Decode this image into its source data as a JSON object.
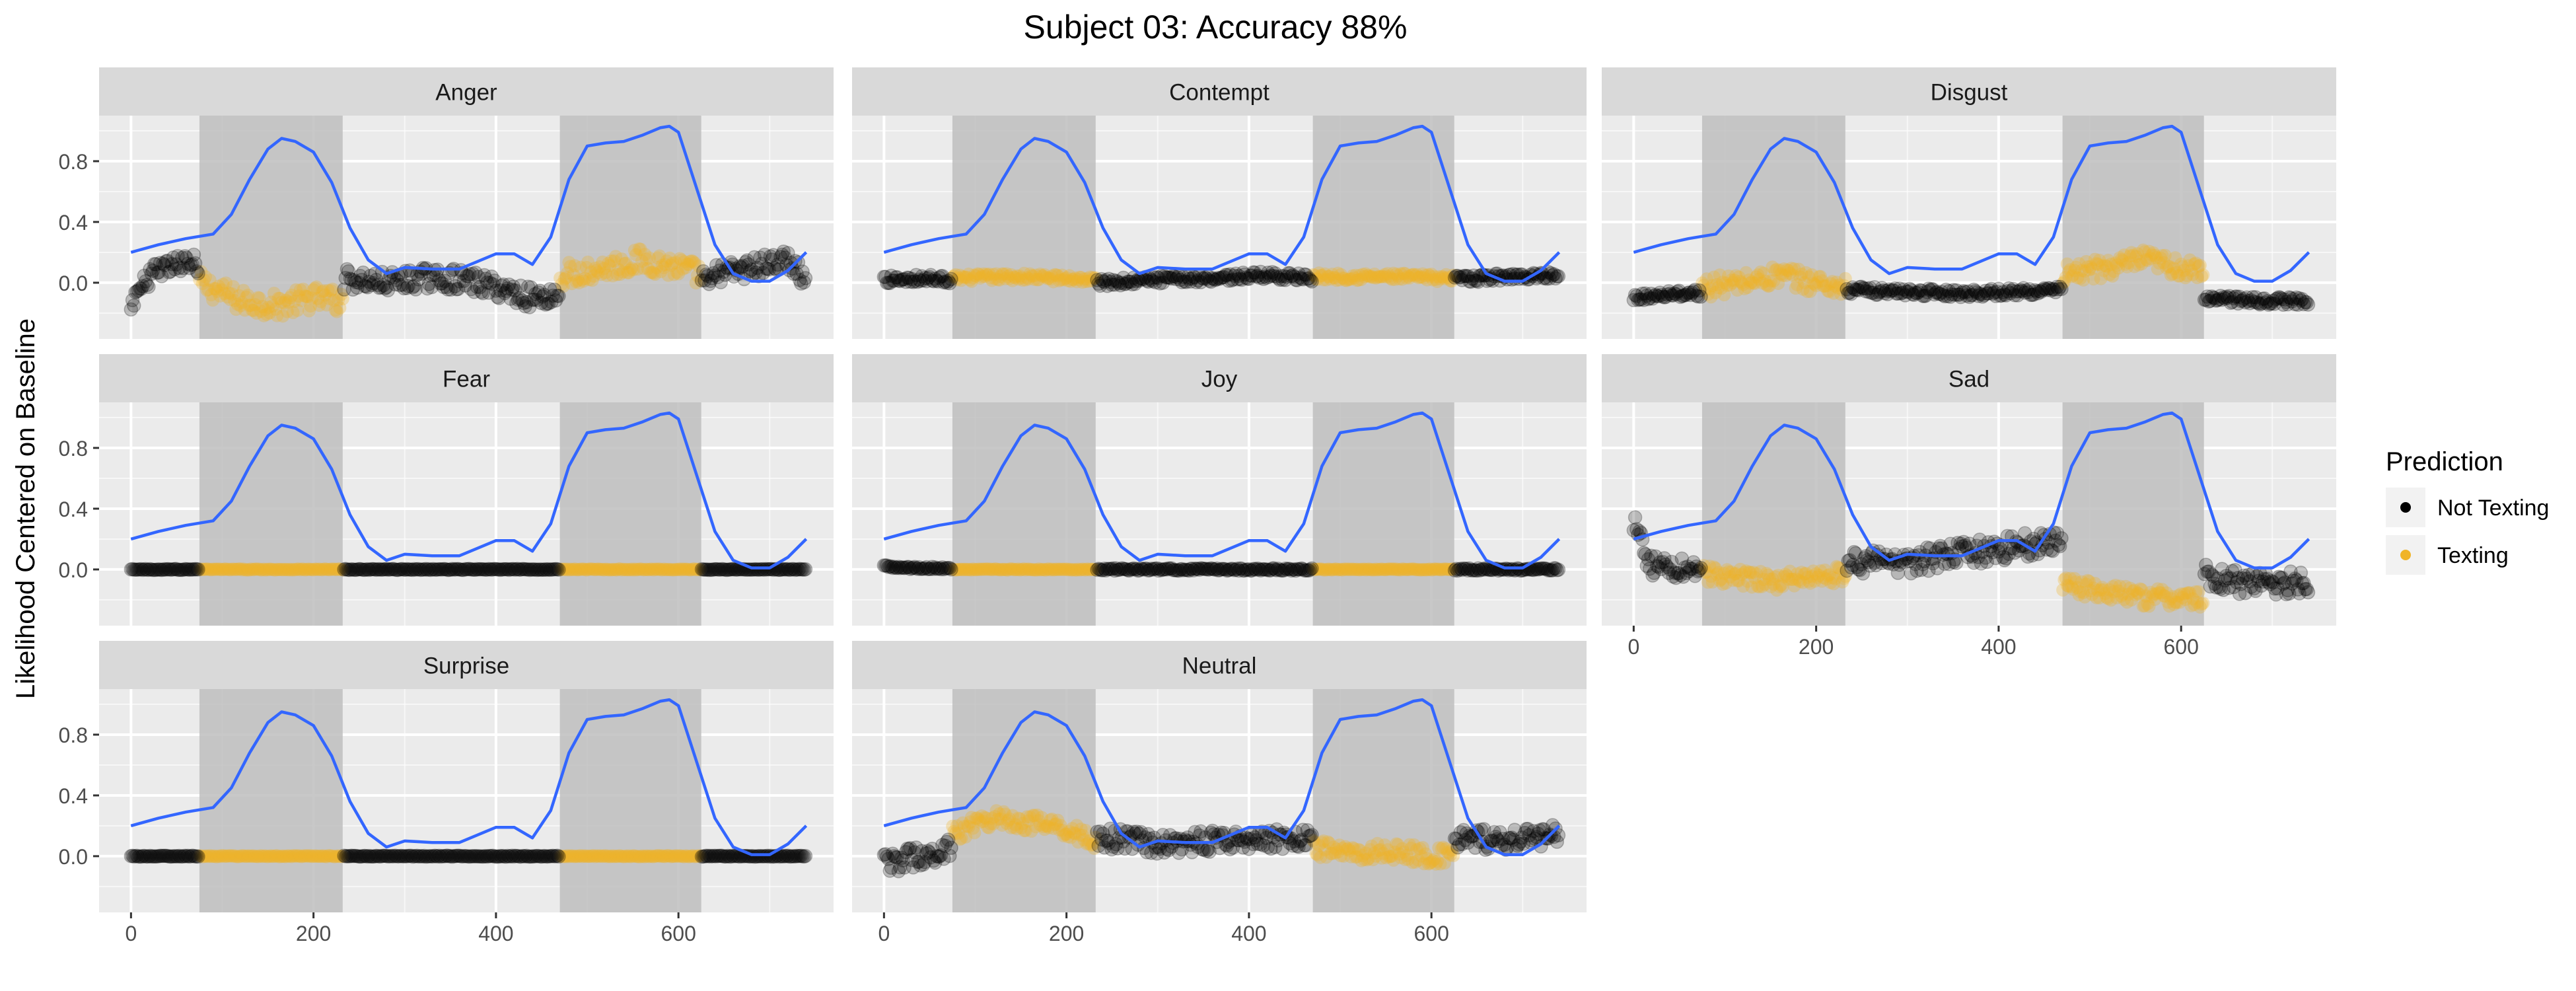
{
  "title": "Subject 03: Accuracy 88%",
  "ylabel": "Likelihood Centered on Baseline",
  "legend": {
    "title": "Prediction",
    "entries": [
      {
        "label": "Not Texting",
        "color": "#000000"
      },
      {
        "label": "Texting",
        "color": "#F0B428"
      }
    ]
  },
  "colors": {
    "panel_bg": "#EBEBEB",
    "strip_bg": "#D9D9D9",
    "grid": "#FFFFFF",
    "shade": "#BEBEBE",
    "line": "#3366FF",
    "not_texting": "#000000",
    "texting": "#F0B428"
  },
  "chart_data": {
    "type": "scatter",
    "facets": [
      "Anger",
      "Contempt",
      "Disgust",
      "Fear",
      "Joy",
      "Sad",
      "Surprise",
      "Neutral"
    ],
    "xlim": [
      -35,
      770
    ],
    "ylim": [
      -0.37,
      1.1
    ],
    "x_ticks": [
      0,
      200,
      400,
      600
    ],
    "x_tick_labels": [
      "0",
      "200",
      "400",
      "600"
    ],
    "y_ticks": [
      0.0,
      0.4,
      0.8
    ],
    "y_tick_labels": [
      "0.0",
      "0.4",
      "0.8"
    ],
    "texting_intervals": [
      [
        75,
        232
      ],
      [
        470,
        625
      ]
    ],
    "line_overlay": {
      "x": [
        0,
        30,
        60,
        90,
        110,
        130,
        150,
        165,
        180,
        200,
        220,
        240,
        260,
        280,
        300,
        330,
        360,
        380,
        400,
        420,
        440,
        460,
        480,
        500,
        520,
        540,
        560,
        580,
        590,
        600,
        620,
        640,
        660,
        680,
        700,
        720,
        740
      ],
      "y": [
        0.2,
        0.25,
        0.29,
        0.32,
        0.45,
        0.68,
        0.88,
        0.95,
        0.93,
        0.86,
        0.66,
        0.36,
        0.15,
        0.06,
        0.1,
        0.09,
        0.09,
        0.14,
        0.19,
        0.19,
        0.12,
        0.3,
        0.68,
        0.9,
        0.92,
        0.93,
        0.97,
        1.02,
        1.03,
        0.99,
        0.62,
        0.25,
        0.06,
        0.01,
        0.01,
        0.08,
        0.2
      ]
    },
    "panels": {
      "Anger": {
        "not_texting": {
          "x": [
            0,
            20,
            40,
            60,
            240,
            280,
            320,
            360,
            400,
            440,
            640,
            680,
            720,
            740
          ],
          "y": [
            -0.18,
            0.05,
            0.1,
            0.13,
            0.02,
            0.0,
            0.03,
            0.02,
            -0.03,
            -0.1,
            0.05,
            0.1,
            0.15,
            0.0
          ],
          "noise": 0.07
        },
        "texting": {
          "x": [
            75,
            120,
            160,
            200,
            232,
            470,
            520,
            560,
            600,
            625
          ],
          "y": [
            0.0,
            -0.12,
            -0.15,
            -0.1,
            -0.12,
            0.05,
            0.1,
            0.15,
            0.1,
            0.05
          ],
          "noise": 0.08
        }
      },
      "Contempt": {
        "not_texting": {
          "x": [
            0,
            40,
            75,
            240,
            300,
            360,
            420,
            470,
            630,
            680,
            740
          ],
          "y": [
            0.02,
            0.03,
            0.02,
            0.0,
            0.02,
            0.03,
            0.05,
            0.03,
            0.02,
            0.04,
            0.05
          ],
          "noise": 0.025
        },
        "texting": {
          "x": [
            75,
            150,
            232,
            470,
            550,
            625
          ],
          "y": [
            0.03,
            0.04,
            0.02,
            0.04,
            0.04,
            0.03
          ],
          "noise": 0.025
        }
      },
      "Disgust": {
        "not_texting": {
          "x": [
            0,
            40,
            75,
            240,
            300,
            360,
            420,
            470,
            630,
            680,
            740
          ],
          "y": [
            -0.1,
            -0.07,
            -0.07,
            -0.05,
            -0.06,
            -0.07,
            -0.06,
            -0.05,
            -0.1,
            -0.12,
            -0.12
          ],
          "noise": 0.025
        },
        "texting": {
          "x": [
            75,
            120,
            160,
            200,
            232,
            470,
            520,
            560,
            600,
            625
          ],
          "y": [
            -0.03,
            0.0,
            0.05,
            0.0,
            -0.03,
            0.05,
            0.1,
            0.15,
            0.1,
            0.05
          ],
          "noise": 0.07
        }
      },
      "Fear": {
        "not_texting": {
          "x": [
            0,
            200,
            400,
            740
          ],
          "y": [
            0.0,
            0.0,
            0.0,
            0.0
          ],
          "noise": 0.003
        },
        "texting": {
          "x": [
            75,
            232,
            470,
            625
          ],
          "y": [
            0.0,
            0.0,
            0.0,
            0.0
          ],
          "noise": 0.003
        }
      },
      "Joy": {
        "not_texting": {
          "x": [
            0,
            30,
            240,
            400,
            740
          ],
          "y": [
            0.02,
            0.01,
            0.0,
            0.0,
            0.0
          ],
          "noise": 0.008
        },
        "texting": {
          "x": [
            75,
            232,
            470,
            625
          ],
          "y": [
            0.0,
            0.0,
            0.0,
            0.0
          ],
          "noise": 0.003
        }
      },
      "Sad": {
        "not_texting": {
          "x": [
            0,
            20,
            75,
            240,
            300,
            360,
            420,
            470,
            630,
            680,
            740
          ],
          "y": [
            0.3,
            0.02,
            0.0,
            0.05,
            0.05,
            0.1,
            0.15,
            0.2,
            -0.05,
            -0.1,
            -0.08
          ],
          "noise": 0.08
        },
        "texting": {
          "x": [
            75,
            150,
            232,
            470,
            550,
            625
          ],
          "y": [
            -0.03,
            -0.08,
            -0.03,
            -0.1,
            -0.18,
            -0.2
          ],
          "noise": 0.06
        }
      },
      "Surprise": {
        "not_texting": {
          "x": [
            0,
            200,
            400,
            740
          ],
          "y": [
            0.0,
            0.0,
            0.0,
            0.0
          ],
          "noise": 0.003
        },
        "texting": {
          "x": [
            75,
            232,
            470,
            625
          ],
          "y": [
            0.0,
            0.0,
            0.0,
            0.0
          ],
          "noise": 0.003
        }
      },
      "Neutral": {
        "not_texting": {
          "x": [
            0,
            40,
            75,
            240,
            300,
            360,
            420,
            470,
            630,
            680,
            740
          ],
          "y": [
            -0.05,
            0.0,
            0.05,
            0.12,
            0.08,
            0.1,
            0.12,
            0.1,
            0.12,
            0.1,
            0.15
          ],
          "noise": 0.07
        },
        "texting": {
          "x": [
            75,
            120,
            160,
            200,
            232,
            470,
            520,
            560,
            600,
            625
          ],
          "y": [
            0.15,
            0.25,
            0.22,
            0.18,
            0.1,
            0.05,
            0.02,
            0.03,
            0.0,
            0.0
          ],
          "noise": 0.06
        }
      }
    },
    "grid": true,
    "legend_position": "right"
  }
}
